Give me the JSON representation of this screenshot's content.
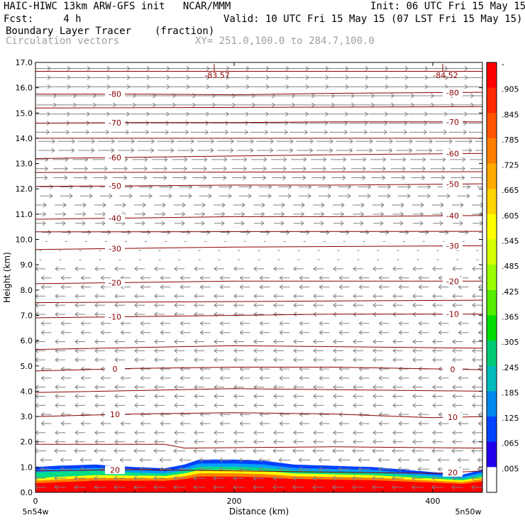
{
  "header": {
    "line1_left": "HAIC-HIWC 13km ARW-GFS init   NCAR/MMM",
    "line1_right": "Init: 06 UTC Fri 15 May 15",
    "line2_left": "Fcst:     4 h",
    "line2_right": "Valid: 10 UTC Fri 15 May 15 (07 LST Fri 15 May 15)",
    "line3_left": "Boundary Layer Tracer",
    "line3_units": "(fraction)",
    "line4_left": "Circulation vectors",
    "line4_xy": "XY= 251.0,100.0 to 284.7,100.0"
  },
  "chart_data": {
    "type": "heatmap",
    "xlabel": "Distance (km)",
    "ylabel": "Height (km)",
    "xlim": [
      0,
      450
    ],
    "ylim": [
      0,
      17
    ],
    "x_ticks": [
      "0",
      "200",
      "400"
    ],
    "x_tick_values": [
      0,
      200,
      400
    ],
    "x_end_labels": {
      "left": "5n54w",
      "right": "5n50w"
    },
    "y_ticks": [
      "0.0",
      "1.0",
      "2.0",
      "3.0",
      "4.0",
      "5.0",
      "6.0",
      "7.0",
      "8.0",
      "9.0",
      "10.0",
      "11.0",
      "12.0",
      "13.0",
      "14.0",
      "15.0",
      "16.0",
      "17.0"
    ],
    "y_tick_values": [
      0,
      1,
      2,
      3,
      4,
      5,
      6,
      7,
      8,
      9,
      10,
      11,
      12,
      13,
      14,
      15,
      16,
      17
    ],
    "colorbar": {
      "labels": [
        "-",
        ".905",
        ".845",
        ".785",
        ".725",
        ".665",
        ".605",
        ".545",
        ".485",
        ".425",
        ".365",
        ".305",
        ".245",
        ".185",
        ".125",
        ".065",
        ".005"
      ],
      "colors": [
        "#ff0000",
        "#ff2a00",
        "#ff5500",
        "#ff8000",
        "#ffaa00",
        "#ffd400",
        "#ffff00",
        "#d4ff00",
        "#99ff00",
        "#55ee00",
        "#00dd00",
        "#00cc77",
        "#00bbbb",
        "#0088ee",
        "#0044ff",
        "#2200ee",
        "#ffffff"
      ]
    },
    "tracer_field": {
      "description_free": true,
      "top_boundary_km": [
        [
          0,
          1.0
        ],
        [
          20,
          1.05
        ],
        [
          60,
          1.1
        ],
        [
          100,
          1.0
        ],
        [
          130,
          0.95
        ],
        [
          150,
          1.1
        ],
        [
          165,
          1.3
        ],
        [
          200,
          1.3
        ],
        [
          230,
          1.25
        ],
        [
          260,
          1.1
        ],
        [
          300,
          1.05
        ],
        [
          340,
          1.0
        ],
        [
          370,
          0.9
        ],
        [
          400,
          0.8
        ],
        [
          430,
          0.7
        ],
        [
          450,
          0.9
        ]
      ]
    },
    "temperature_contours": [
      {
        "label": "-80",
        "points": [
          [
            0,
            15.75
          ],
          [
            100,
            15.75
          ],
          [
            200,
            15.72
          ],
          [
            300,
            15.78
          ],
          [
            450,
            15.82
          ]
        ]
      },
      {
        "label": "-70",
        "points": [
          [
            0,
            14.6
          ],
          [
            100,
            14.62
          ],
          [
            200,
            14.62
          ],
          [
            300,
            14.65
          ],
          [
            450,
            14.65
          ]
        ]
      },
      {
        "label": "-60",
        "points": [
          [
            0,
            13.2
          ],
          [
            100,
            13.25
          ],
          [
            200,
            13.3
          ],
          [
            300,
            13.35
          ],
          [
            450,
            13.4
          ]
        ]
      },
      {
        "label": "-50",
        "points": [
          [
            0,
            12.1
          ],
          [
            100,
            12.12
          ],
          [
            200,
            12.15
          ],
          [
            300,
            12.15
          ],
          [
            450,
            12.2
          ]
        ]
      },
      {
        "label": "-40",
        "points": [
          [
            0,
            10.8
          ],
          [
            100,
            10.85
          ],
          [
            200,
            10.9
          ],
          [
            300,
            10.9
          ],
          [
            450,
            10.95
          ]
        ]
      },
      {
        "label": "-30",
        "points": [
          [
            0,
            9.6
          ],
          [
            100,
            9.65
          ],
          [
            200,
            9.7
          ],
          [
            300,
            9.72
          ],
          [
            450,
            9.75
          ]
        ]
      },
      {
        "label": "-20",
        "points": [
          [
            0,
            8.25
          ],
          [
            100,
            8.3
          ],
          [
            200,
            8.35
          ],
          [
            300,
            8.35
          ],
          [
            450,
            8.35
          ]
        ]
      },
      {
        "label": "-10",
        "points": [
          [
            0,
            6.9
          ],
          [
            100,
            6.95
          ],
          [
            200,
            7.0
          ],
          [
            300,
            7.05
          ],
          [
            450,
            7.05
          ]
        ]
      },
      {
        "label": "0",
        "points": [
          [
            0,
            4.8
          ],
          [
            100,
            4.9
          ],
          [
            200,
            4.95
          ],
          [
            300,
            4.95
          ],
          [
            450,
            4.85
          ]
        ]
      },
      {
        "label": "10",
        "points": [
          [
            0,
            3.0
          ],
          [
            100,
            3.1
          ],
          [
            200,
            3.15
          ],
          [
            300,
            3.1
          ],
          [
            400,
            2.95
          ],
          [
            450,
            3.0
          ]
        ]
      },
      {
        "label": "20",
        "points": [
          [
            0,
            0.85
          ],
          [
            100,
            0.9
          ],
          [
            200,
            0.85
          ],
          [
            300,
            0.8
          ],
          [
            400,
            0.75
          ],
          [
            450,
            0.85
          ]
        ]
      }
    ],
    "extra_lines": [
      {
        "points": [
          [
            0,
            16.65
          ],
          [
            450,
            16.65
          ]
        ]
      },
      {
        "points": [
          [
            0,
            15.2
          ],
          [
            450,
            15.25
          ]
        ]
      },
      {
        "points": [
          [
            0,
            14.0
          ],
          [
            450,
            14.0
          ]
        ]
      },
      {
        "points": [
          [
            0,
            12.65
          ],
          [
            450,
            12.68
          ]
        ]
      },
      {
        "points": [
          [
            0,
            10.3
          ],
          [
            450,
            10.32
          ]
        ]
      },
      {
        "points": [
          [
            0,
            7.5
          ],
          [
            450,
            7.6
          ]
        ]
      },
      {
        "points": [
          [
            0,
            5.65
          ],
          [
            200,
            5.8
          ],
          [
            450,
            5.7
          ]
        ]
      },
      {
        "points": [
          [
            0,
            3.95
          ],
          [
            200,
            4.1
          ],
          [
            450,
            4.0
          ]
        ]
      },
      {
        "points": [
          [
            0,
            1.9
          ],
          [
            130,
            1.9
          ],
          [
            150,
            1.75
          ],
          [
            300,
            1.8
          ],
          [
            450,
            1.75
          ]
        ]
      }
    ],
    "tropopause_labels": [
      {
        "text": "-83.57",
        "x": 180
      },
      {
        "text": "-84.52",
        "x": 410
      }
    ],
    "wind_vectors": {
      "upper_direction": "east",
      "lower_direction": "west",
      "reversal_height_km": 10.0
    }
  }
}
